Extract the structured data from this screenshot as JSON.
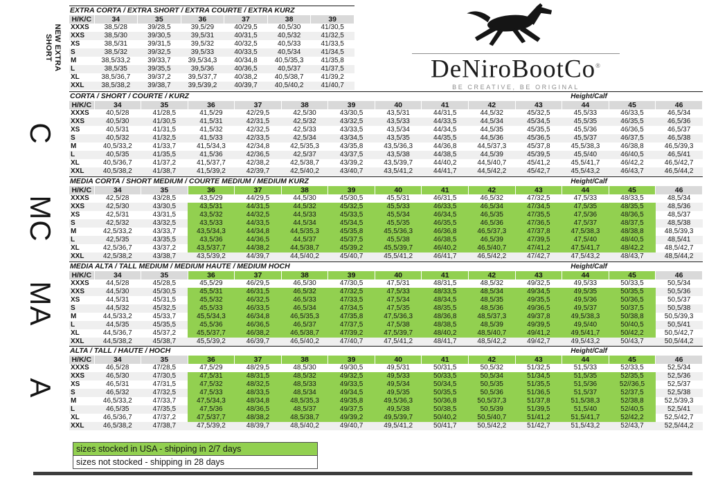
{
  "brand": {
    "name": "DeNiroBootCo",
    "mark": "®",
    "tagline": "BE CREATIVE, BE ORIGINAL",
    "logo_icon": "galloping-horse-icon"
  },
  "colors": {
    "stocked_green": "#92d050",
    "header_gray": "#d9d9d9",
    "stripe_gray": "#efefef",
    "divider_dark": "#3d3d3d"
  },
  "legend": [
    {
      "label": "sizes stocked in USA - shipping in 2/7 days",
      "stocked": true
    },
    {
      "label": "sizes not stocked - shipping in 28 days",
      "stocked": false
    }
  ],
  "table": {
    "corner_header": "H/K/C",
    "height_calf_label": "Height/Calf",
    "row_labels": [
      "XXXS",
      "XXS",
      "XS",
      "S",
      "M",
      "L",
      "XL",
      "XXL"
    ],
    "sections": [
      {
        "id": "extra-short",
        "side_label": "NEW EXTRA\nSHORT",
        "title": "EXTRA CORTA / EXTRA SHORT / EXTRA COURTE / EXTRA KURZ",
        "show_height_calf": false,
        "stocked": null,
        "sizes": [
          "34",
          "35",
          "36",
          "37",
          "38",
          "39"
        ],
        "rows": [
          [
            "38,5/28",
            "39/28,5",
            "39,5/29",
            "40/29,5",
            "40,5/30",
            "41/30,5"
          ],
          [
            "38,5/30",
            "39/30,5",
            "39,5/31",
            "40/31,5",
            "40,5/32",
            "41/32,5"
          ],
          [
            "38,5/31",
            "39/31,5",
            "39,5/32",
            "40/32,5",
            "40,5/33",
            "41/33,5"
          ],
          [
            "38,5/32",
            "39/32,5",
            "39,5/33",
            "40/33,5",
            "40,5/34",
            "41/34,5"
          ],
          [
            "38,5/33,2",
            "39/33,7",
            "39,5/34,3",
            "40/34,8",
            "40,5/35,3",
            "41/35,8"
          ],
          [
            "38,5/35",
            "39/35,5",
            "39,5/36",
            "40/36,5",
            "40,5/37",
            "41/37,5"
          ],
          [
            "38,5/36,7",
            "39/37,2",
            "39,5/37,7",
            "40/38,2",
            "40,5/38,7",
            "41/39,2"
          ],
          [
            "38,5/38,2",
            "39/38,7",
            "39,5/39,2",
            "40/39,7",
            "40,5/40,2",
            "41/40,7"
          ]
        ]
      },
      {
        "id": "short",
        "side_label": "C",
        "title": "CORTA / SHORT / COURTE / KURZ",
        "show_height_calf": true,
        "stocked": null,
        "sizes": [
          "34",
          "35",
          "36",
          "37",
          "38",
          "39",
          "40",
          "41",
          "42",
          "43",
          "44",
          "45",
          "46"
        ],
        "rows": [
          [
            "40,5/28",
            "41/28,5",
            "41,5/29",
            "42/29,5",
            "42,5/30",
            "43/30,5",
            "43,5/31",
            "44/31,5",
            "44,5/32",
            "45/32,5",
            "45,5/33",
            "46/33,5",
            "46,5/34"
          ],
          [
            "40,5/30",
            "41/30,5",
            "41,5/31",
            "42/31,5",
            "42,5/32",
            "43/32,5",
            "43,5/33",
            "44/33,5",
            "44,5/34",
            "45/34,5",
            "45,5/35",
            "46/35,5",
            "46,5/36"
          ],
          [
            "40,5/31",
            "41/31,5",
            "41,5/32",
            "42/32,5",
            "42,5/33",
            "43/33,5",
            "43,5/34",
            "44/34,5",
            "44,5/35",
            "45/35,5",
            "45,5/36",
            "46/36,5",
            "46,5/37"
          ],
          [
            "40,5/32",
            "41/32,5",
            "41,5/33",
            "42/33,5",
            "42,5/34",
            "43/34,5",
            "43,5/35",
            "44/35,5",
            "44,5/36",
            "45/36,5",
            "45,5/37",
            "46/37,5",
            "46,5/38"
          ],
          [
            "40,5/33,2",
            "41/33,7",
            "41,5/34,3",
            "42/34,8",
            "42,5/35,3",
            "43/35,8",
            "43,5/36,3",
            "44/36,8",
            "44,5/37,3",
            "45/37,8",
            "45,5/38,3",
            "46/38,8",
            "46,5/39,3"
          ],
          [
            "40,5/35",
            "41/35,5",
            "41,5/36",
            "42/36,5",
            "42,5/37",
            "43/37,5",
            "43,5/38",
            "44/38,5",
            "44,5/39",
            "45/39,5",
            "45,5/40",
            "46/40,5",
            "46,5/41"
          ],
          [
            "40,5/36,7",
            "41/37,2",
            "41,5/37,7",
            "42/38,2",
            "42,5/38,7",
            "43/39,2",
            "43,5/39,7",
            "44/40,2",
            "44,5/40,7",
            "45/41,2",
            "45,5/41,7",
            "46/42,2",
            "46,5/42,7"
          ],
          [
            "40,5/38,2",
            "41/38,7",
            "41,5/39,2",
            "42/39,7",
            "42,5/40,2",
            "43/40,7",
            "43,5/41,2",
            "44/41,7",
            "44,5/42,2",
            "45/42,7",
            "45,5/43,2",
            "46/43,7",
            "46,5/44,2"
          ]
        ]
      },
      {
        "id": "short-medium",
        "side_label": "MC",
        "title": "MEDIA CORTA / SHORT MEDIUM / COURTE MEDIUM / MEDIUM KURZ",
        "show_height_calf": true,
        "stocked": {
          "rows": [
            1,
            6
          ],
          "cols": [
            2,
            11
          ]
        },
        "sizes": [
          "34",
          "35",
          "36",
          "37",
          "38",
          "39",
          "40",
          "41",
          "42",
          "43",
          "44",
          "45",
          "46"
        ],
        "rows": [
          [
            "42,5/28",
            "43/28,5",
            "43,5/29",
            "44/29,5",
            "44,5/30",
            "45/30,5",
            "45,5/31",
            "46/31,5",
            "46,5/32",
            "47/32,5",
            "47,5/33",
            "48/33,5",
            "48,5/34"
          ],
          [
            "42,5/30",
            "43/30,5",
            "43,5/31",
            "44/31,5",
            "44,5/32",
            "45/32,5",
            "45,5/33",
            "46/33,5",
            "46,5/34",
            "47/34,5",
            "47,5/35",
            "48/35,5",
            "48,5/36"
          ],
          [
            "42,5/31",
            "43/31,5",
            "43,5/32",
            "44/32,5",
            "44,5/33",
            "45/33,5",
            "45,5/34",
            "46/34,5",
            "46,5/35",
            "47/35,5",
            "47,5/36",
            "48/36,5",
            "48,5/37"
          ],
          [
            "42,5/32",
            "43/32,5",
            "43,5/33",
            "44/33,5",
            "44,5/34",
            "45/34,5",
            "45,5/35",
            "46/35,5",
            "46,5/36",
            "47/36,5",
            "47,5/37",
            "48/37,5",
            "48,5/38"
          ],
          [
            "42,5/33,2",
            "43/33,7",
            "43,5/34,3",
            "44/34,8",
            "44,5/35,3",
            "45/35,8",
            "45,5/36,3",
            "46/36,8",
            "46,5/37,3",
            "47/37,8",
            "47,5/38,3",
            "48/38,8",
            "48,5/39,3"
          ],
          [
            "42,5/35",
            "43/35,5",
            "43,5/36",
            "44/36,5",
            "44,5/37",
            "45/37,5",
            "45,5/38",
            "46/38,5",
            "46,5/39",
            "47/39,5",
            "47,5/40",
            "48/40,5",
            "48,5/41"
          ],
          [
            "42,5/36,7",
            "43/37,2",
            "43,5/37,7",
            "44/38,2",
            "44,5/38,7",
            "45/39,2",
            "45,5/39,7",
            "46/40,2",
            "46,5/40,7",
            "47/41,2",
            "47,5/41,7",
            "48/42,2",
            "48,5/42,7"
          ],
          [
            "42,5/38,2",
            "43/38,7",
            "43,5/39,2",
            "44/39,7",
            "44,5/40,2",
            "45/40,7",
            "45,5/41,2",
            "46/41,7",
            "46,5/42,2",
            "47/42,7",
            "47,5/43,2",
            "48/43,7",
            "48,5/44,2"
          ]
        ]
      },
      {
        "id": "tall-medium",
        "side_label": "MA",
        "title": "MEDIA ALTA / TALL MEDIUM / MEDIUM HAUTE / MEDIUM HOCH",
        "show_height_calf": true,
        "stocked": {
          "rows": [
            1,
            6
          ],
          "cols": [
            2,
            11
          ]
        },
        "sizes": [
          "34",
          "35",
          "36",
          "37",
          "38",
          "39",
          "40",
          "41",
          "42",
          "43",
          "44",
          "45",
          "46"
        ],
        "rows": [
          [
            "44,5/28",
            "45/28,5",
            "45,5/29",
            "46/29,5",
            "46,5/30",
            "47/30,5",
            "47,5/31",
            "48/31,5",
            "48,5/32",
            "49/32,5",
            "49,5/33",
            "50/33,5",
            "50,5/34"
          ],
          [
            "44,5/30",
            "45/30,5",
            "45,5/31",
            "46/31,5",
            "46,5/32",
            "47/32,5",
            "47,5/33",
            "48/33,5",
            "48,5/34",
            "49/34,5",
            "49,5/35",
            "50/35,5",
            "50,5/36"
          ],
          [
            "44,5/31",
            "45/31,5",
            "45,5/32",
            "46/32,5",
            "46,5/33",
            "47/33,5",
            "47,5/34",
            "48/34,5",
            "48,5/35",
            "49/35,5",
            "49,5/36",
            "50/36,5",
            "50,5/37"
          ],
          [
            "44,5/32",
            "45/32,5",
            "45,5/33",
            "46/33,5",
            "46,5/34",
            "47/34,5",
            "47,5/35",
            "48/35,5",
            "48,5/36",
            "49/36,5",
            "49,5/37",
            "50/37,5",
            "50,5/38"
          ],
          [
            "44,5/33,2",
            "45/33,7",
            "45,5/34,3",
            "46/34,8",
            "46,5/35,3",
            "47/35,8",
            "47,5/36,3",
            "48/36,8",
            "48,5/37,3",
            "49/37,8",
            "49,5/38,3",
            "50/38,8",
            "50,5/39,3"
          ],
          [
            "44,5/35",
            "45/35,5",
            "45,5/36",
            "46/36,5",
            "46,5/37",
            "47/37,5",
            "47,5/38",
            "48/38,5",
            "48,5/39",
            "49/39,5",
            "49,5/40",
            "50/40,5",
            "50,5/41"
          ],
          [
            "44,5/36,7",
            "45/37,2",
            "45,5/37,7",
            "46/38,2",
            "46,5/38,7",
            "47/39,2",
            "47,5/39,7",
            "48/40,2",
            "48,5/40,7",
            "49/41,2",
            "49,5/41,7",
            "50/42,2",
            "50,5/42,7"
          ],
          [
            "44,5/38,2",
            "45/38,7",
            "45,5/39,2",
            "46/39,7",
            "46,5/40,2",
            "47/40,7",
            "47,5/41,2",
            "48/41,7",
            "48,5/42,2",
            "49/42,7",
            "49,5/43,2",
            "50/43,7",
            "50,5/44,2"
          ]
        ]
      },
      {
        "id": "tall",
        "side_label": "A",
        "title": "ALTA / TALL / HAUTE / HOCH",
        "show_height_calf": true,
        "stocked": {
          "rows": [
            1,
            6
          ],
          "cols": [
            2,
            11
          ]
        },
        "sizes": [
          "34",
          "35",
          "36",
          "37",
          "38",
          "39",
          "40",
          "41",
          "42",
          "43",
          "44",
          "45",
          "46"
        ],
        "rows": [
          [
            "46,5/28",
            "47/28,5",
            "47,5/29",
            "48/29,5",
            "48,5/30",
            "49/30,5",
            "49,5/31",
            "50/31,5",
            "50,5/32",
            "51/32,5",
            "51,5/33",
            "52/33,5",
            "52,5/34"
          ],
          [
            "46,5/30",
            "47/30,5",
            "47,5/31",
            "48/31,5",
            "48,5/32",
            "49/32,5",
            "49,5/33",
            "50/33,5",
            "50,5/34",
            "51/34,5",
            "51,5/35",
            "52/35,5",
            "52,5/36"
          ],
          [
            "46,5/31",
            "47/31,5",
            "47,5/32",
            "48/32,5",
            "48,5/33",
            "49/33,5",
            "49,5/34",
            "50/34,5",
            "50,5/35",
            "51/35,5",
            "51,5/36",
            "52//36,5",
            "52,5/37"
          ],
          [
            "46,5/32",
            "47/32,5",
            "47,5/33",
            "48/33,5",
            "48,5/34",
            "49/34,5",
            "49,5/35",
            "50/35,5",
            "50,5/36",
            "51/36,5",
            "51,5/37",
            "52/37,5",
            "52,5/38"
          ],
          [
            "46,5/33,2",
            "47/33,7",
            "47,5/34,3",
            "48/34,8",
            "48,5/35,3",
            "49/35,8",
            "49,5/36,3",
            "50/36,8",
            "50,5/37,3",
            "51/37,8",
            "51,5/38,3",
            "52/38,8",
            "52,5/39,3"
          ],
          [
            "46,5/35",
            "47/35,5",
            "47,5/36",
            "48/36,5",
            "48,5/37",
            "49/37,5",
            "49,5/38",
            "50/38,5",
            "50,5/39",
            "51/39,5",
            "51,5/40",
            "52/40,5",
            "52,5/41"
          ],
          [
            "46,5/36,7",
            "47/37,2",
            "47,5/37,7",
            "48/38,2",
            "48,5/38,7",
            "49/39,2",
            "49,5/39,7",
            "50/40,2",
            "50,5/40,7",
            "51/41,2",
            "51,5/41,7",
            "52/42,2",
            "52,5/42,7"
          ],
          [
            "46,5/38,2",
            "47/38,7",
            "47,5/39,2",
            "48/39,7",
            "48,5/40,2",
            "49/40,7",
            "49,5/41,2",
            "50/41,7",
            "50,5/42,2",
            "51/42,7",
            "51,5/43,2",
            "52/43,7",
            "52,5/44,2"
          ]
        ]
      }
    ]
  }
}
